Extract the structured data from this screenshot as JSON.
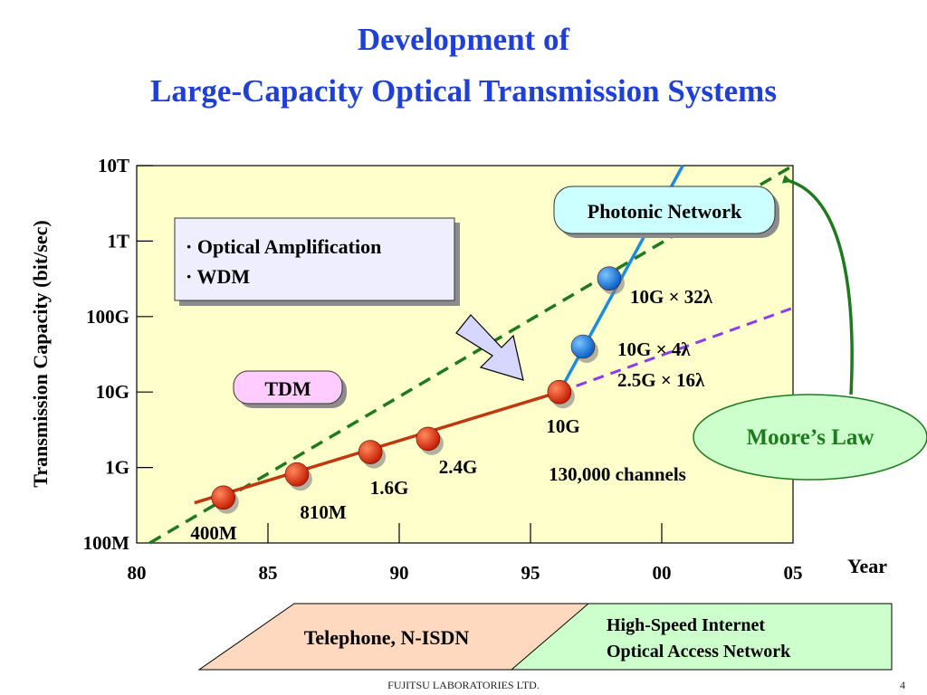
{
  "slide": {
    "title_line1": "Development of",
    "title_line2": "Large-Capacity Optical Transmission Systems",
    "footer": "FUJITSU LABORATORIES LTD.",
    "page_number": "4"
  },
  "chart_data": {
    "type": "scatter",
    "xlabel": "Year",
    "ylabel": "Transmission Capacity  (bit/sec)",
    "x_ticks": [
      "80",
      "85",
      "90",
      "95",
      "00",
      "05"
    ],
    "x_tick_values": [
      1980,
      1985,
      1990,
      1995,
      2000,
      2005
    ],
    "y_scale": "log",
    "y_ticks": [
      "100M",
      "1G",
      "10G",
      "100G",
      "1T",
      "10T"
    ],
    "y_tick_values": [
      100000000,
      1000000000,
      10000000000,
      100000000000,
      1000000000000,
      10000000000000
    ],
    "xlim": [
      1980,
      2005
    ],
    "ylim": [
      100000000,
      10000000000000
    ],
    "series": [
      {
        "name": "TDM",
        "color": "#c0390e",
        "points": [
          {
            "x": 1983.3,
            "y": 400000000,
            "label": "400M"
          },
          {
            "x": 1986.1,
            "y": 810000000,
            "label": "810M"
          },
          {
            "x": 1988.9,
            "y": 1600000000,
            "label": "1.6G"
          },
          {
            "x": 1991.1,
            "y": 2400000000,
            "label": "2.4G"
          },
          {
            "x": 1996.1,
            "y": 10000000000,
            "label": "10G"
          }
        ]
      },
      {
        "name": "Photonic Network",
        "color": "#1a8de0",
        "points": [
          {
            "x": 1997.0,
            "y": 40000000000,
            "label": "10G × 4λ"
          },
          {
            "x": 1997.0,
            "y": 40000000000,
            "label": "2.5G × 16λ"
          },
          {
            "x": 1998.0,
            "y": 320000000000,
            "label": "10G × 32λ"
          }
        ]
      }
    ],
    "annotations": {
      "tdm_box": "TDM",
      "photonic_box": "Photonic Network",
      "moores_law": "Moore’s  Law",
      "channels": "130,000 channels",
      "techniques": [
        "· Optical Amplification",
        "· WDM"
      ]
    },
    "moores_law_line": {
      "x": [
        1980.5,
        2005
      ],
      "y": [
        100000000,
        10000000000000
      ],
      "color": "#1f7a1f"
    },
    "wdm_trend_line": {
      "x": [
        1996.1,
        2005
      ],
      "y": [
        10000000000,
        130000000000
      ],
      "color": "#8a3cf0"
    },
    "services": {
      "telephone": "Telephone, N-ISDN",
      "internet_line1": "High-Speed Internet",
      "internet_line2": "Optical Access Network"
    }
  }
}
